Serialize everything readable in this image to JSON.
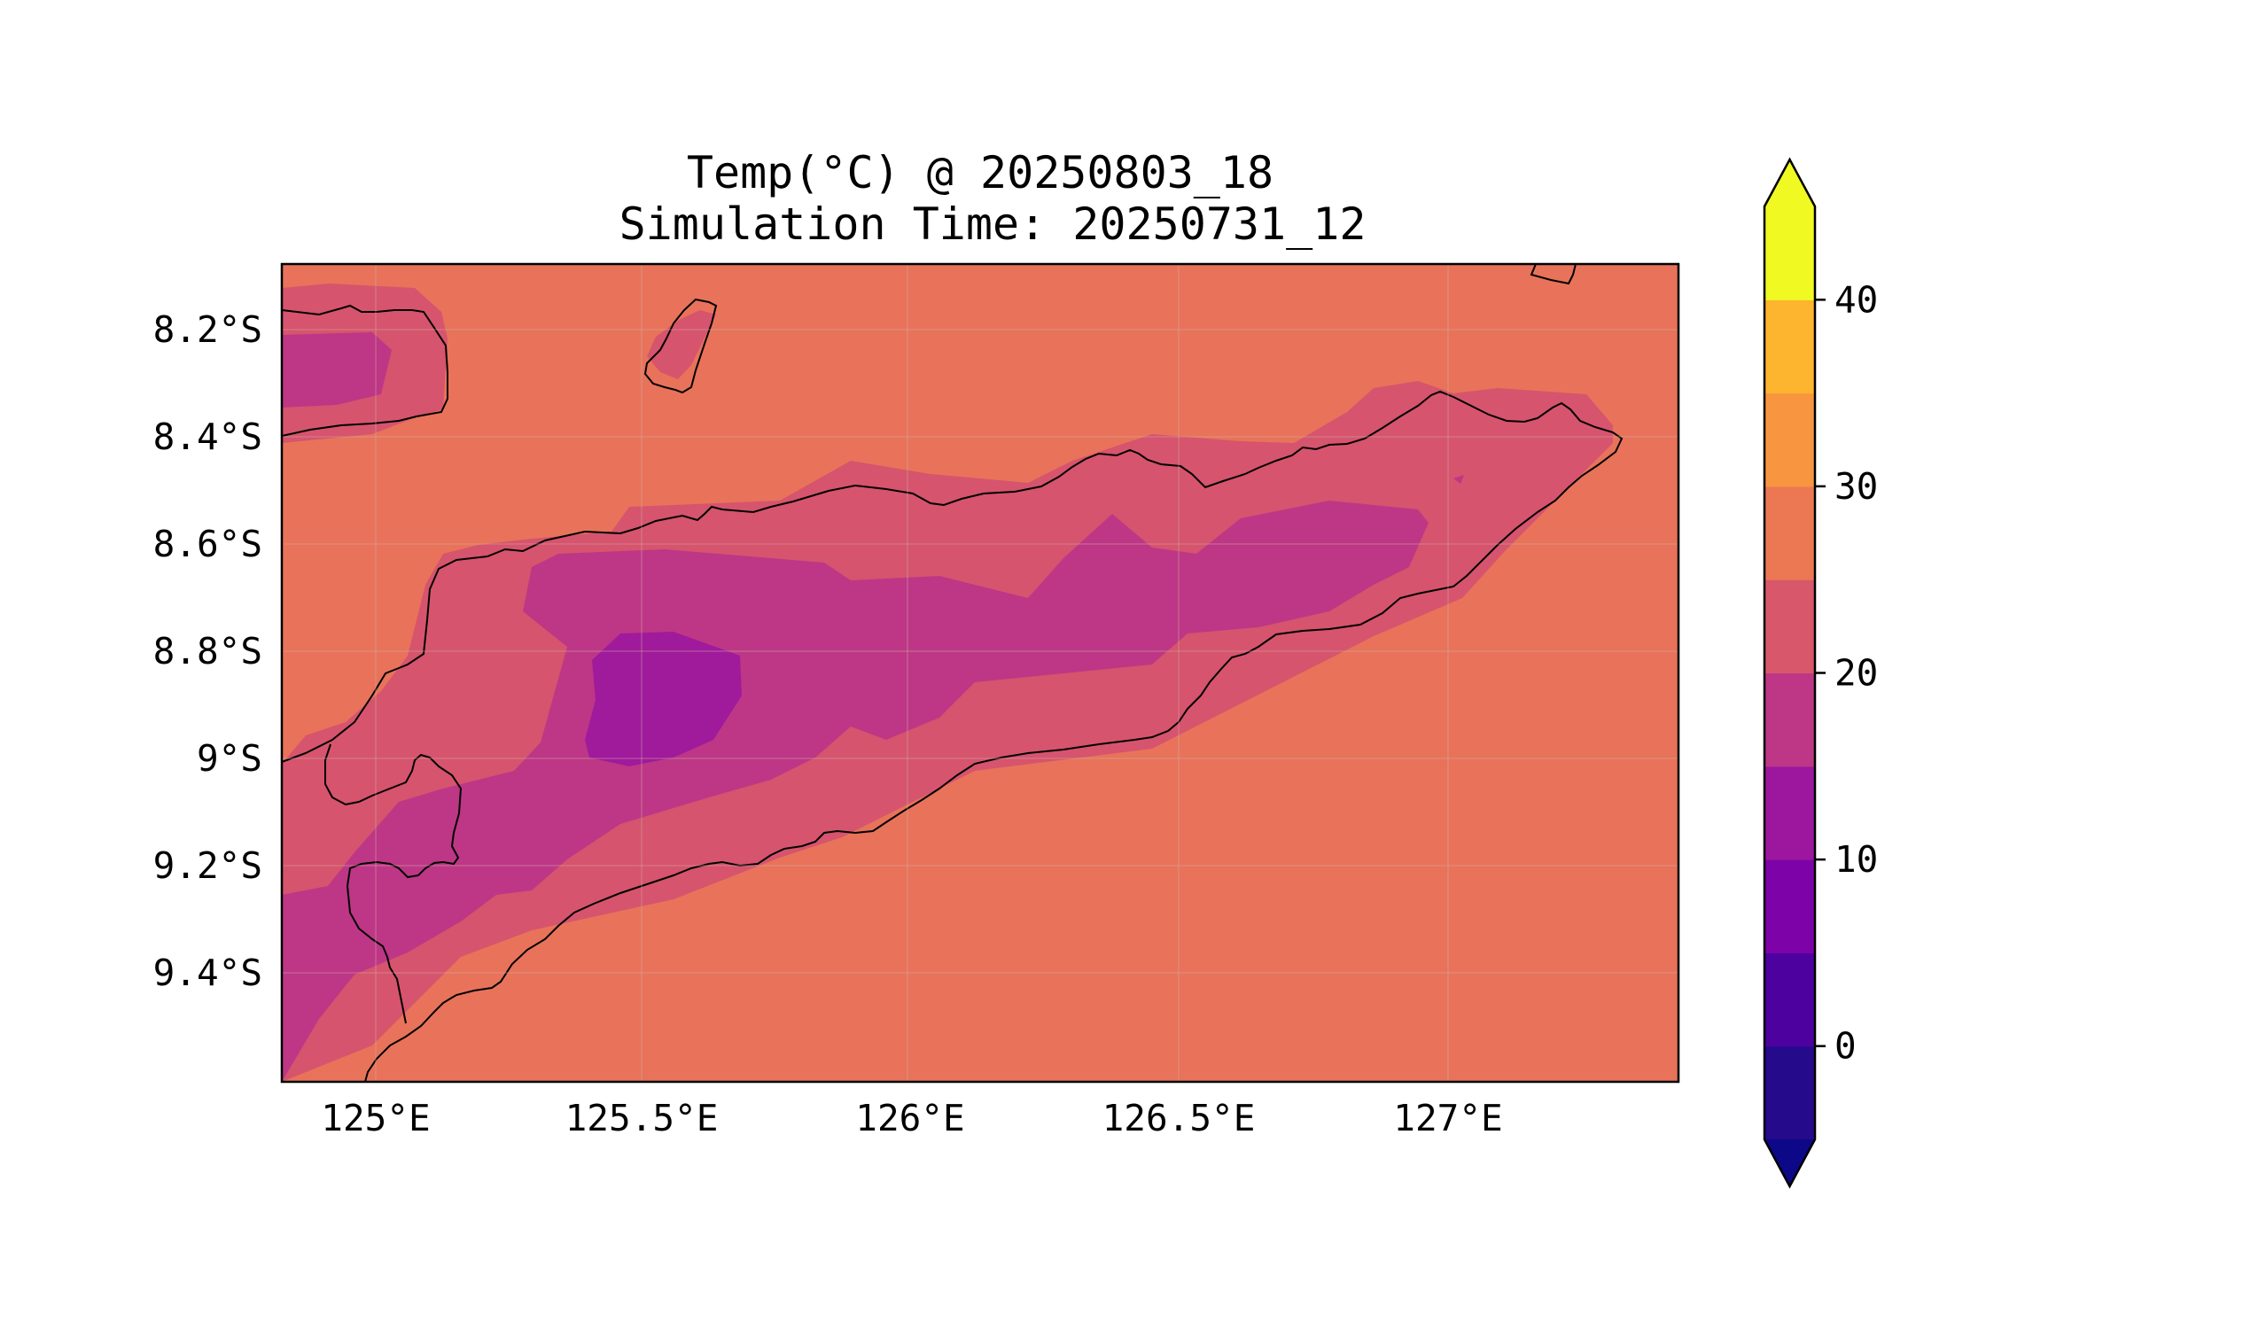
{
  "title": {
    "line1": "Temp(°C) @ 20250803_18",
    "line2": "Simulation Time: 20250731_12"
  },
  "map": {
    "type": "filled-contour",
    "variable": "Temp(°C)",
    "lon_range": [
      124.83,
      127.42
    ],
    "lat_range": [
      -9.6,
      -8.08
    ],
    "grid": true,
    "x_ticks": [
      {
        "value": 125.0,
        "label": "125°E"
      },
      {
        "value": 125.5,
        "label": "125.5°E"
      },
      {
        "value": 126.0,
        "label": "126°E"
      },
      {
        "value": 126.5,
        "label": "126.5°E"
      },
      {
        "value": 127.0,
        "label": "127°E"
      }
    ],
    "y_ticks": [
      {
        "value": -8.2,
        "label": "8.2°S"
      },
      {
        "value": -8.4,
        "label": "8.4°S"
      },
      {
        "value": -8.6,
        "label": "8.6°S"
      },
      {
        "value": -8.8,
        "label": "8.8°S"
      },
      {
        "value": -9.0,
        "label": "9°S"
      },
      {
        "value": -9.2,
        "label": "9.2°S"
      },
      {
        "value": -9.4,
        "label": "9.4°S"
      }
    ]
  },
  "colorbar": {
    "extend": "both",
    "levels": [
      -5,
      0,
      5,
      10,
      15,
      20,
      25,
      30,
      35,
      40,
      45
    ],
    "colors": [
      "#250a8c",
      "#4d02a0",
      "#7d03a8",
      "#9c179e",
      "#bd3786",
      "#d8576b",
      "#ec7853",
      "#f89540",
      "#fdb42f",
      "#f0f921"
    ],
    "under_color": "#0d0887",
    "over_color": "#f0f921",
    "ticks": [
      {
        "value": 0,
        "label": "0"
      },
      {
        "value": 10,
        "label": "10"
      },
      {
        "value": 20,
        "label": "20"
      },
      {
        "value": 30,
        "label": "30"
      },
      {
        "value": 40,
        "label": "40"
      }
    ]
  },
  "fill_colors": {
    "band_25_30": "#e8735a",
    "band_20_25": "#d6546d",
    "band_15_20": "#bd3786",
    "band_10_15": "#a01a9c"
  }
}
